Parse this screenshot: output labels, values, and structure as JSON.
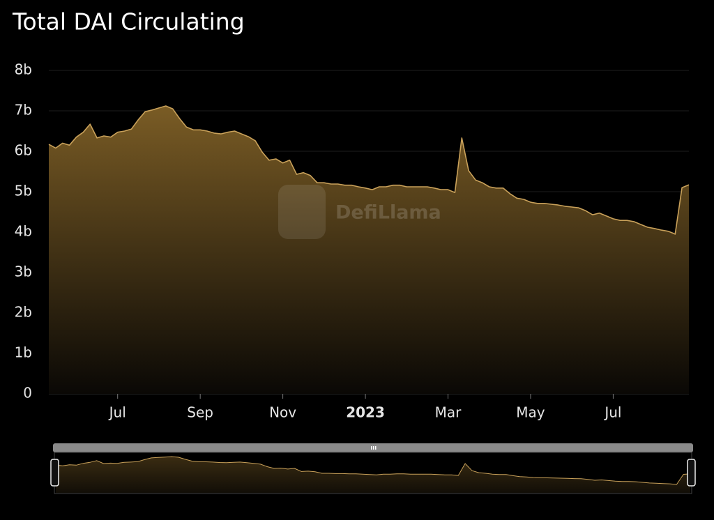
{
  "chart_data": {
    "type": "area",
    "title": "Total DAI Circulating",
    "watermark": "DefiLlama",
    "color": "#c9a15a",
    "categories": [
      null,
      null,
      null,
      null,
      null,
      null,
      null,
      null,
      null,
      null,
      "Jul",
      null,
      null,
      null,
      null,
      null,
      null,
      null,
      null,
      null,
      null,
      null,
      "Sep",
      null,
      null,
      null,
      null,
      null,
      null,
      null,
      null,
      null,
      null,
      null,
      "Nov",
      null,
      null,
      null,
      null,
      null,
      null,
      null,
      null,
      null,
      null,
      null,
      "2023",
      null,
      null,
      null,
      null,
      null,
      null,
      null,
      null,
      null,
      null,
      null,
      "Mar",
      null,
      null,
      null,
      null,
      null,
      null,
      null,
      null,
      null,
      null,
      null,
      "May",
      null,
      null,
      null,
      null,
      null,
      null,
      null,
      null,
      null,
      null,
      null,
      "Jul",
      null,
      null,
      null,
      null,
      null,
      null,
      null,
      null,
      null,
      null,
      null
    ],
    "values": [
      6.17,
      6.08,
      6.2,
      6.15,
      6.35,
      6.47,
      6.67,
      6.33,
      6.38,
      6.35,
      6.47,
      6.5,
      6.55,
      6.78,
      6.98,
      7.02,
      7.07,
      7.12,
      7.05,
      6.81,
      6.6,
      6.53,
      6.53,
      6.5,
      6.45,
      6.43,
      6.47,
      6.5,
      6.43,
      6.36,
      6.26,
      5.98,
      5.78,
      5.81,
      5.71,
      5.78,
      5.43,
      5.47,
      5.4,
      5.22,
      5.22,
      5.19,
      5.19,
      5.16,
      5.16,
      5.12,
      5.09,
      5.05,
      5.12,
      5.12,
      5.16,
      5.16,
      5.12,
      5.12,
      5.12,
      5.12,
      5.09,
      5.05,
      5.05,
      4.98,
      6.33,
      5.52,
      5.29,
      5.22,
      5.12,
      5.09,
      5.09,
      4.95,
      4.84,
      4.81,
      4.74,
      4.71,
      4.71,
      4.69,
      4.67,
      4.64,
      4.62,
      4.6,
      4.53,
      4.43,
      4.47,
      4.4,
      4.33,
      4.29,
      4.29,
      4.26,
      4.19,
      4.12,
      4.09,
      4.05,
      4.02,
      3.95,
      5.1,
      5.17
    ],
    "ylim": [
      0,
      8
    ],
    "yticks": [
      0,
      {
        "value": 1,
        "label": "1b"
      },
      {
        "value": 2,
        "label": "2b"
      },
      {
        "value": 3,
        "label": "3b"
      },
      {
        "value": 4,
        "label": "4b"
      },
      {
        "value": 5,
        "label": "5b"
      },
      {
        "value": 6,
        "label": "6b"
      },
      {
        "value": 7,
        "label": "7b"
      },
      {
        "value": 8,
        "label": "8b"
      }
    ],
    "grid": true
  }
}
